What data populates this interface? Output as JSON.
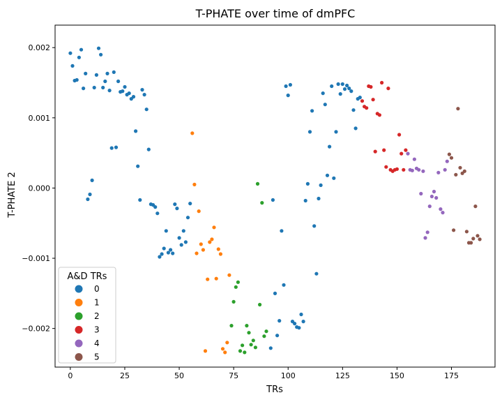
{
  "chart_data": {
    "type": "scatter",
    "title": "T-PHATE over time of dmPFC",
    "xlabel": "TRs",
    "ylabel": "T-PHATE 2",
    "xlim": [
      -7,
      195
    ],
    "ylim": [
      -0.00255,
      0.00232
    ],
    "x_ticks": [
      0,
      25,
      50,
      75,
      100,
      125,
      150,
      175
    ],
    "y_ticks": [
      -0.002,
      -0.001,
      0.0,
      0.001,
      0.002
    ],
    "y_tick_labels": [
      "−0.002",
      "−0.001",
      "0.000",
      "0.001",
      "0.002"
    ],
    "grid": false,
    "legend": {
      "title": "A&D TRs",
      "placement": "lower-left",
      "entries": [
        "0",
        "1",
        "2",
        "3",
        "4",
        "5"
      ]
    },
    "series": [
      {
        "name": "0",
        "color": "#1f77b4",
        "points": [
          [
            0,
            0.00192
          ],
          [
            1,
            0.00174
          ],
          [
            2,
            0.00153
          ],
          [
            3,
            0.00154
          ],
          [
            4,
            0.00186
          ],
          [
            5,
            0.00197
          ],
          [
            6,
            0.00142
          ],
          [
            7,
            0.00163
          ],
          [
            8,
            -0.00016
          ],
          [
            9,
            -9e-05
          ],
          [
            10,
            0.00011
          ],
          [
            11,
            0.00143
          ],
          [
            12,
            0.00161
          ],
          [
            13,
            0.00199
          ],
          [
            14,
            0.0019
          ],
          [
            15,
            0.00143
          ],
          [
            16,
            0.00152
          ],
          [
            17,
            0.00163
          ],
          [
            18,
            0.00139
          ],
          [
            19,
            0.00057
          ],
          [
            20,
            0.00165
          ],
          [
            21,
            0.00058
          ],
          [
            22,
            0.00152
          ],
          [
            23,
            0.00137
          ],
          [
            24,
            0.00138
          ],
          [
            25,
            0.00144
          ],
          [
            26,
            0.00133
          ],
          [
            27,
            0.00135
          ],
          [
            28,
            0.00127
          ],
          [
            29,
            0.0013
          ],
          [
            30,
            0.00081
          ],
          [
            31,
            0.00031
          ],
          [
            32,
            -0.00017
          ],
          [
            33,
            0.0014
          ],
          [
            34,
            0.00133
          ],
          [
            35,
            0.00112
          ],
          [
            36,
            0.00055
          ],
          [
            37,
            -0.00023
          ],
          [
            38,
            -0.00024
          ],
          [
            39,
            -0.00027
          ],
          [
            40,
            -0.00036
          ],
          [
            41,
            -0.00098
          ],
          [
            42,
            -0.00094
          ],
          [
            43,
            -0.00086
          ],
          [
            44,
            -0.00061
          ],
          [
            45,
            -0.00092
          ],
          [
            46,
            -0.00088
          ],
          [
            47,
            -0.00093
          ],
          [
            48,
            -0.00023
          ],
          [
            49,
            -0.00029
          ],
          [
            50,
            -0.00071
          ],
          [
            51,
            -0.00081
          ],
          [
            52,
            -0.00061
          ],
          [
            53,
            -0.00077
          ],
          [
            54,
            -0.00042
          ],
          [
            55,
            -0.00022
          ],
          [
            92,
            -0.00228
          ],
          [
            93,
            -0.00017
          ],
          [
            94,
            -0.0015
          ],
          [
            95,
            -0.0021
          ],
          [
            96,
            -0.00189
          ],
          [
            97,
            -0.00061
          ],
          [
            98,
            -0.00138
          ],
          [
            99,
            0.00145
          ],
          [
            100,
            0.00132
          ],
          [
            101,
            0.00147
          ],
          [
            102,
            -0.0019
          ],
          [
            103,
            -0.00193
          ],
          [
            104,
            -0.00198
          ],
          [
            105,
            -0.00199
          ],
          [
            106,
            -0.0018
          ],
          [
            107,
            -0.0019
          ],
          [
            108,
            -0.00018
          ],
          [
            109,
            6e-05
          ],
          [
            110,
            0.0008
          ],
          [
            111,
            0.0011
          ],
          [
            112,
            -0.00054
          ],
          [
            113,
            -0.00122
          ],
          [
            114,
            -0.00015
          ],
          [
            115,
            4e-05
          ],
          [
            116,
            0.00135
          ],
          [
            117,
            0.00119
          ],
          [
            118,
            0.00018
          ],
          [
            119,
            0.00059
          ],
          [
            120,
            0.00145
          ],
          [
            121,
            0.00014
          ],
          [
            122,
            0.0008
          ],
          [
            123,
            0.00148
          ],
          [
            124,
            0.00134
          ],
          [
            125,
            0.00148
          ],
          [
            126,
            0.00141
          ],
          [
            127,
            0.00146
          ],
          [
            128,
            0.00142
          ],
          [
            129,
            0.00138
          ],
          [
            130,
            0.00111
          ],
          [
            131,
            0.00085
          ],
          [
            132,
            0.00127
          ],
          [
            133,
            0.00129
          ]
        ]
      },
      {
        "name": "1",
        "color": "#ff7f0e",
        "points": [
          [
            56,
            0.00078
          ],
          [
            57,
            5e-05
          ],
          [
            58,
            -0.00093
          ],
          [
            59,
            -0.00033
          ],
          [
            60,
            -0.0008
          ],
          [
            61,
            -0.00088
          ],
          [
            62,
            -0.00232
          ],
          [
            63,
            -0.0013
          ],
          [
            64,
            -0.00077
          ],
          [
            65,
            -0.00073
          ],
          [
            66,
            -0.00056
          ],
          [
            67,
            -0.00129
          ],
          [
            68,
            -0.00087
          ],
          [
            69,
            -0.00094
          ],
          [
            70,
            -0.00229
          ],
          [
            71,
            -0.00234
          ],
          [
            72,
            -0.0022
          ],
          [
            73,
            -0.00124
          ]
        ]
      },
      {
        "name": "2",
        "color": "#2ca02c",
        "points": [
          [
            74,
            -0.00196
          ],
          [
            75,
            -0.00162
          ],
          [
            76,
            -0.00141
          ],
          [
            77,
            -0.00134
          ],
          [
            78,
            -0.00232
          ],
          [
            79,
            -0.00224
          ],
          [
            80,
            -0.00234
          ],
          [
            81,
            -0.00196
          ],
          [
            82,
            -0.00206
          ],
          [
            83,
            -0.00223
          ],
          [
            84,
            -0.00217
          ],
          [
            85,
            -0.00227
          ],
          [
            86,
            6e-05
          ],
          [
            87,
            -0.00166
          ],
          [
            88,
            -0.00021
          ],
          [
            89,
            -0.00211
          ],
          [
            90,
            -0.00204
          ]
        ]
      },
      {
        "name": "3",
        "color": "#d62728",
        "points": [
          [
            134,
            0.00124
          ],
          [
            135,
            0.00116
          ],
          [
            136,
            0.00114
          ],
          [
            137,
            0.00145
          ],
          [
            138,
            0.00144
          ],
          [
            139,
            0.00126
          ],
          [
            140,
            0.00052
          ],
          [
            141,
            0.00106
          ],
          [
            142,
            0.00104
          ],
          [
            143,
            0.0015
          ],
          [
            144,
            0.00054
          ],
          [
            145,
            0.0003
          ],
          [
            146,
            0.00142
          ],
          [
            147,
            0.00026
          ],
          [
            148,
            0.00024
          ],
          [
            149,
            0.00026
          ],
          [
            150,
            0.00027
          ],
          [
            151,
            0.00076
          ],
          [
            152,
            0.00049
          ],
          [
            153,
            0.00026
          ],
          [
            154,
            0.00054
          ]
        ]
      },
      {
        "name": "4",
        "color": "#9467bd",
        "points": [
          [
            155,
            0.00049
          ],
          [
            156,
            0.00026
          ],
          [
            157,
            0.00025
          ],
          [
            158,
            0.00041
          ],
          [
            159,
            0.00028
          ],
          [
            160,
            0.00026
          ],
          [
            161,
            -8e-05
          ],
          [
            162,
            0.00024
          ],
          [
            163,
            -0.00071
          ],
          [
            164,
            -0.00063
          ],
          [
            165,
            -0.00026
          ],
          [
            166,
            -0.00012
          ],
          [
            167,
            -5e-05
          ],
          [
            168,
            -0.00014
          ],
          [
            169,
            0.00022
          ],
          [
            170,
            -0.0003
          ],
          [
            171,
            -0.00035
          ],
          [
            172,
            0.00026
          ],
          [
            173,
            0.00038
          ]
        ]
      },
      {
        "name": "5",
        "color": "#8c564b",
        "points": [
          [
            174,
            0.00048
          ],
          [
            175,
            0.00043
          ],
          [
            176,
            -0.0006
          ],
          [
            177,
            0.00019
          ],
          [
            178,
            0.00113
          ],
          [
            179,
            0.00029
          ],
          [
            180,
            0.00021
          ],
          [
            181,
            0.00024
          ],
          [
            182,
            -0.00062
          ],
          [
            183,
            -0.00078
          ],
          [
            184,
            -0.00078
          ],
          [
            185,
            -0.00072
          ],
          [
            186,
            -0.00026
          ],
          [
            187,
            -0.00068
          ],
          [
            188,
            -0.00073
          ]
        ]
      }
    ]
  }
}
